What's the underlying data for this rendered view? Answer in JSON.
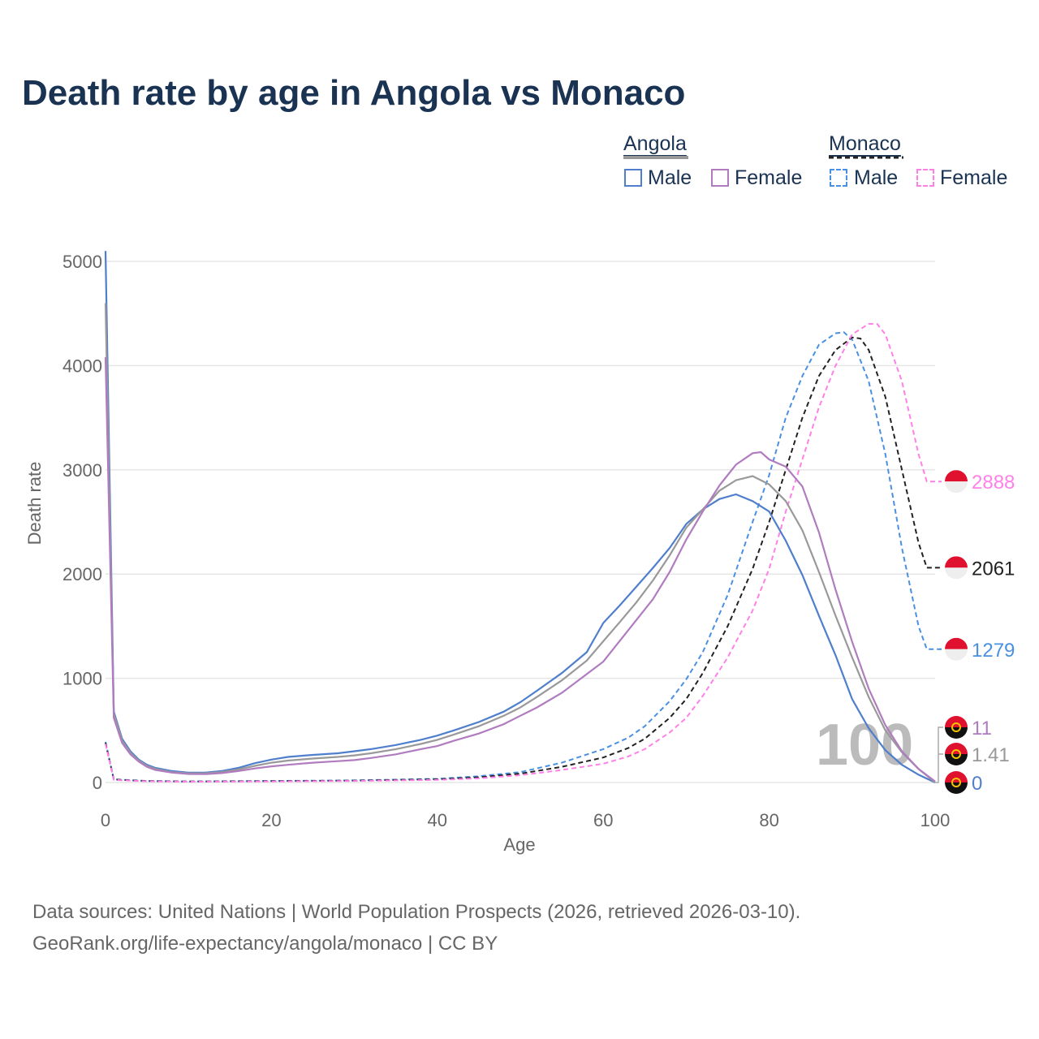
{
  "title": "Death rate by age in Angola vs Monaco",
  "legend": {
    "groups": [
      {
        "name": "Angola",
        "items": [
          "Male",
          "Female"
        ]
      },
      {
        "name": "Monaco",
        "items": [
          "Male",
          "Female"
        ]
      }
    ]
  },
  "source_line1": "Data sources: United Nations | World Population Prospects (2026, retrieved 2026-03-10).",
  "source_line2": "GeoRank.org/life-expectancy/angola/monaco | CC BY",
  "chart_data": {
    "type": "line",
    "title": "Death rate by age in Angola vs Monaco",
    "xlabel": "Age",
    "ylabel": "Death rate",
    "xlim": [
      0,
      100
    ],
    "ylim": [
      0,
      5000
    ],
    "xticks": [
      0,
      20,
      40,
      60,
      80,
      100
    ],
    "yticks": [
      0,
      1000,
      2000,
      3000,
      4000,
      5000
    ],
    "grid": true,
    "legend_position": "top-right",
    "watermark": "100",
    "series": [
      {
        "name": "Angola Male",
        "color": "#4f7fcc",
        "dash": false,
        "end_label": "0",
        "flag": "angola",
        "x": [
          0,
          1,
          2,
          3,
          4,
          5,
          6,
          8,
          10,
          12,
          14,
          16,
          18,
          20,
          22,
          25,
          28,
          30,
          32,
          35,
          38,
          40,
          42,
          45,
          48,
          50,
          52,
          55,
          58,
          60,
          62,
          64,
          66,
          68,
          70,
          72,
          74,
          76,
          78,
          80,
          82,
          84,
          86,
          88,
          90,
          92,
          94,
          96,
          98,
          100
        ],
        "y": [
          5100,
          680,
          420,
          300,
          220,
          170,
          140,
          110,
          95,
          95,
          110,
          140,
          185,
          220,
          245,
          265,
          280,
          300,
          320,
          360,
          410,
          450,
          500,
          580,
          680,
          770,
          880,
          1050,
          1250,
          1530,
          1700,
          1880,
          2060,
          2250,
          2480,
          2620,
          2720,
          2765,
          2700,
          2600,
          2320,
          1990,
          1600,
          1220,
          800,
          520,
          310,
          170,
          75,
          0
        ]
      },
      {
        "name": "Angola Total",
        "color": "#999999",
        "dash": false,
        "end_label": "1.41",
        "flag": "angola",
        "x": [
          0,
          1,
          2,
          3,
          4,
          5,
          6,
          8,
          10,
          12,
          14,
          16,
          18,
          20,
          22,
          25,
          28,
          30,
          32,
          35,
          38,
          40,
          42,
          45,
          48,
          50,
          52,
          55,
          58,
          60,
          62,
          64,
          66,
          68,
          70,
          72,
          74,
          76,
          78,
          80,
          82,
          84,
          86,
          88,
          90,
          92,
          94,
          96,
          98,
          100
        ],
        "y": [
          4600,
          660,
          400,
          285,
          210,
          160,
          130,
          100,
          88,
          88,
          100,
          125,
          160,
          190,
          210,
          230,
          245,
          260,
          280,
          320,
          370,
          410,
          460,
          540,
          640,
          720,
          820,
          980,
          1170,
          1355,
          1540,
          1730,
          1940,
          2180,
          2445,
          2620,
          2800,
          2900,
          2940,
          2860,
          2700,
          2420,
          2020,
          1600,
          1200,
          820,
          500,
          290,
          130,
          1.41
        ]
      },
      {
        "name": "Angola Female",
        "color": "#b07cbf",
        "dash": false,
        "end_label": "11",
        "flag": "angola",
        "x": [
          0,
          1,
          2,
          3,
          4,
          5,
          6,
          8,
          10,
          12,
          14,
          16,
          18,
          20,
          22,
          25,
          28,
          30,
          32,
          35,
          38,
          40,
          42,
          45,
          48,
          50,
          52,
          55,
          58,
          60,
          62,
          64,
          66,
          68,
          70,
          72,
          74,
          76,
          78,
          79,
          80,
          82,
          84,
          86,
          88,
          90,
          92,
          94,
          96,
          98,
          100
        ],
        "y": [
          4080,
          620,
          380,
          270,
          200,
          150,
          120,
          95,
          82,
          80,
          90,
          110,
          135,
          155,
          170,
          190,
          205,
          215,
          235,
          270,
          320,
          350,
          400,
          470,
          560,
          640,
          720,
          860,
          1040,
          1160,
          1360,
          1560,
          1760,
          2020,
          2330,
          2600,
          2850,
          3050,
          3160,
          3170,
          3100,
          3030,
          2840,
          2400,
          1850,
          1350,
          900,
          550,
          300,
          130,
          11
        ]
      },
      {
        "name": "Monaco Male",
        "color": "#4a90e2",
        "dash": true,
        "end_label": "1279",
        "flag": "monaco",
        "x": [
          0,
          1,
          5,
          10,
          20,
          30,
          40,
          45,
          50,
          55,
          60,
          63,
          65,
          68,
          70,
          72,
          75,
          78,
          80,
          82,
          84,
          86,
          88,
          89,
          90,
          92,
          94,
          96,
          98,
          99,
          100
        ],
        "y": [
          390,
          30,
          15,
          10,
          15,
          20,
          35,
          60,
          100,
          190,
          320,
          430,
          540,
          780,
          990,
          1250,
          1800,
          2500,
          2950,
          3500,
          3900,
          4200,
          4310,
          4320,
          4250,
          3850,
          3150,
          2250,
          1500,
          1279,
          1279
        ]
      },
      {
        "name": "Monaco Total",
        "color": "#222222",
        "dash": true,
        "end_label": "2061",
        "flag": "monaco",
        "x": [
          0,
          1,
          5,
          10,
          20,
          30,
          40,
          45,
          50,
          55,
          60,
          63,
          65,
          68,
          70,
          72,
          75,
          78,
          80,
          82,
          84,
          86,
          88,
          90,
          91,
          92,
          94,
          96,
          98,
          99,
          100
        ],
        "y": [
          380,
          28,
          14,
          9,
          13,
          18,
          30,
          50,
          85,
          150,
          240,
          330,
          420,
          620,
          800,
          1050,
          1500,
          2050,
          2500,
          3000,
          3500,
          3900,
          4150,
          4270,
          4260,
          4150,
          3700,
          3000,
          2300,
          2061,
          2061
        ]
      },
      {
        "name": "Monaco Female",
        "color": "#ff80e8",
        "dash": true,
        "end_label": "2888",
        "flag": "monaco",
        "x": [
          0,
          1,
          5,
          10,
          20,
          30,
          40,
          45,
          50,
          55,
          60,
          63,
          65,
          68,
          70,
          72,
          75,
          78,
          80,
          82,
          84,
          86,
          88,
          90,
          92,
          93,
          94,
          96,
          98,
          99,
          100
        ],
        "y": [
          370,
          25,
          12,
          8,
          10,
          15,
          25,
          40,
          70,
          120,
          180,
          250,
          320,
          480,
          620,
          830,
          1200,
          1650,
          2050,
          2600,
          3100,
          3600,
          4000,
          4300,
          4400,
          4400,
          4300,
          3850,
          3150,
          2888,
          2888
        ]
      }
    ]
  }
}
